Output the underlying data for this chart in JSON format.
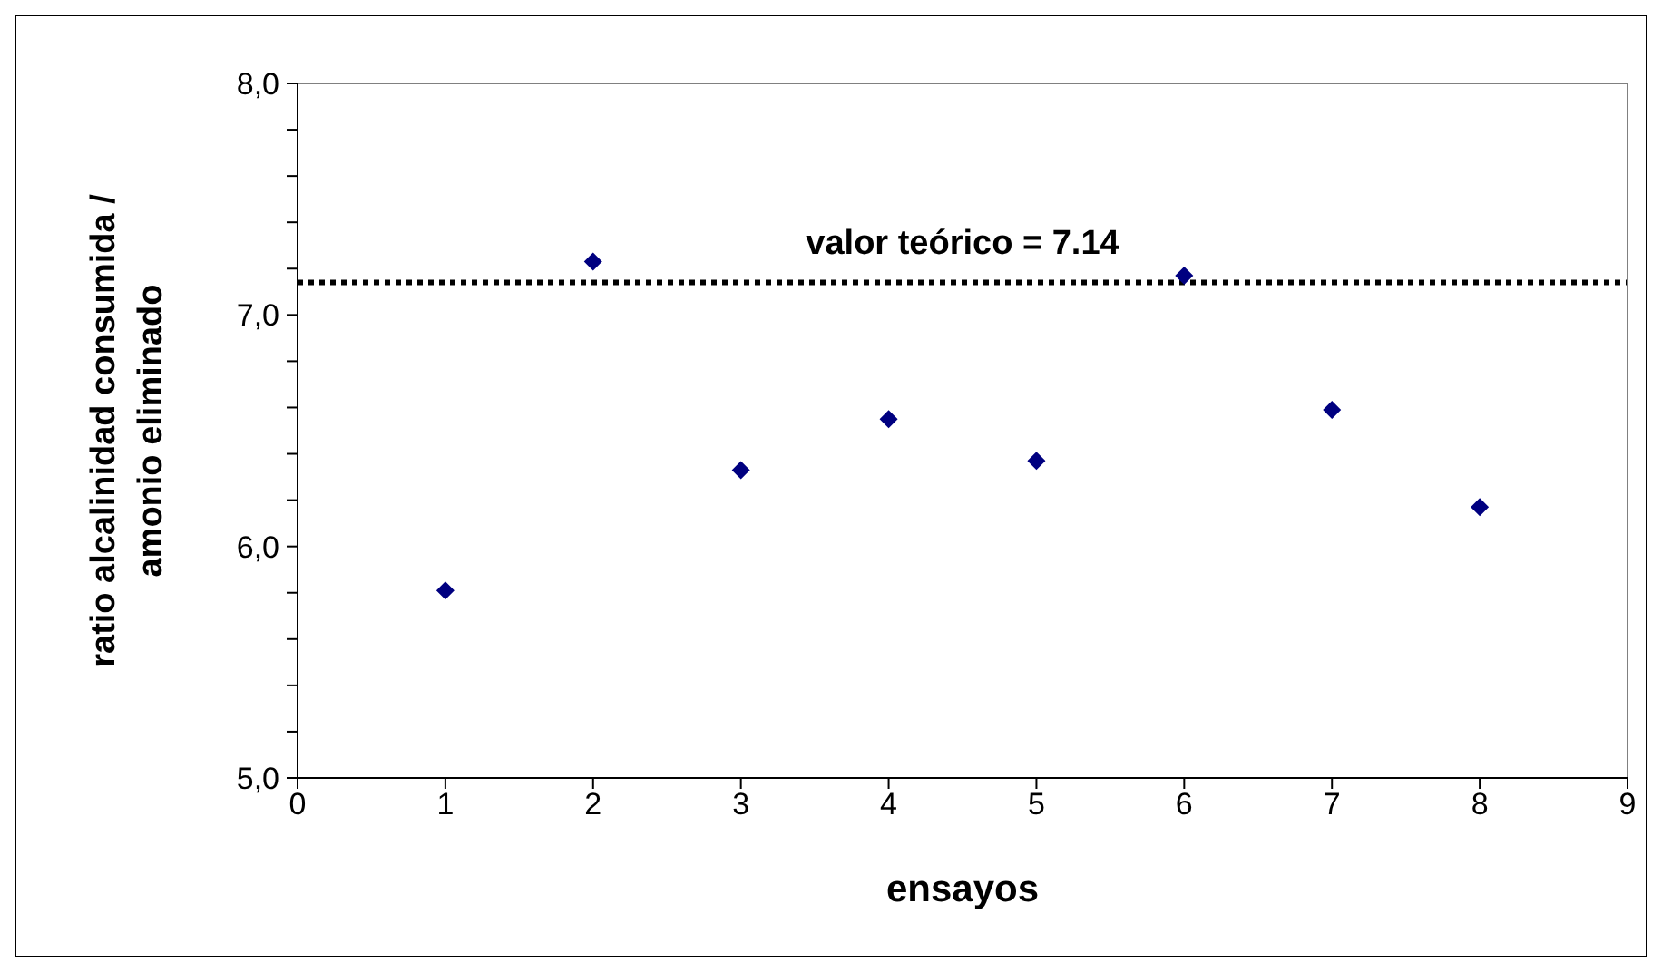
{
  "chart_data": {
    "type": "scatter",
    "xlabel": "ensayos",
    "ylabel": "ratio alcalinidad consumida / amonio eliminado",
    "x": [
      1,
      2,
      3,
      4,
      5,
      6,
      7,
      8
    ],
    "series": [
      {
        "color": "#000080",
        "values": [
          5.81,
          7.23,
          6.33,
          6.55,
          6.37,
          7.17,
          6.59,
          6.17
        ]
      }
    ],
    "xlim": [
      0,
      9
    ],
    "xticks": [
      0,
      1,
      2,
      3,
      4,
      5,
      6,
      7,
      8,
      9
    ],
    "ylim": [
      5,
      8
    ],
    "yticks": [
      {
        "value": 5,
        "label": "5,0"
      },
      {
        "value": 5.2,
        "label": null
      },
      {
        "value": 5.4,
        "label": null
      },
      {
        "value": 5.6,
        "label": null
      },
      {
        "value": 5.8,
        "label": null
      },
      {
        "value": 6,
        "label": "6,0"
      },
      {
        "value": 6.2,
        "label": null
      },
      {
        "value": 6.4,
        "label": null
      },
      {
        "value": 6.6,
        "label": null
      },
      {
        "value": 6.8,
        "label": null
      },
      {
        "value": 7,
        "label": "7,0"
      },
      {
        "value": 7.2,
        "label": null
      },
      {
        "value": 7.4,
        "label": null
      },
      {
        "value": 7.6,
        "label": null
      },
      {
        "value": 7.8,
        "label": null
      },
      {
        "value": 8,
        "label": "8,0"
      }
    ],
    "ref_lines": [
      {
        "axis": "y",
        "value": 7.14,
        "label": "valor teórico = 7.14",
        "color": "#000000",
        "line_style": "dotted"
      }
    ],
    "grid": false,
    "legend": false,
    "marker": "diamond"
  }
}
